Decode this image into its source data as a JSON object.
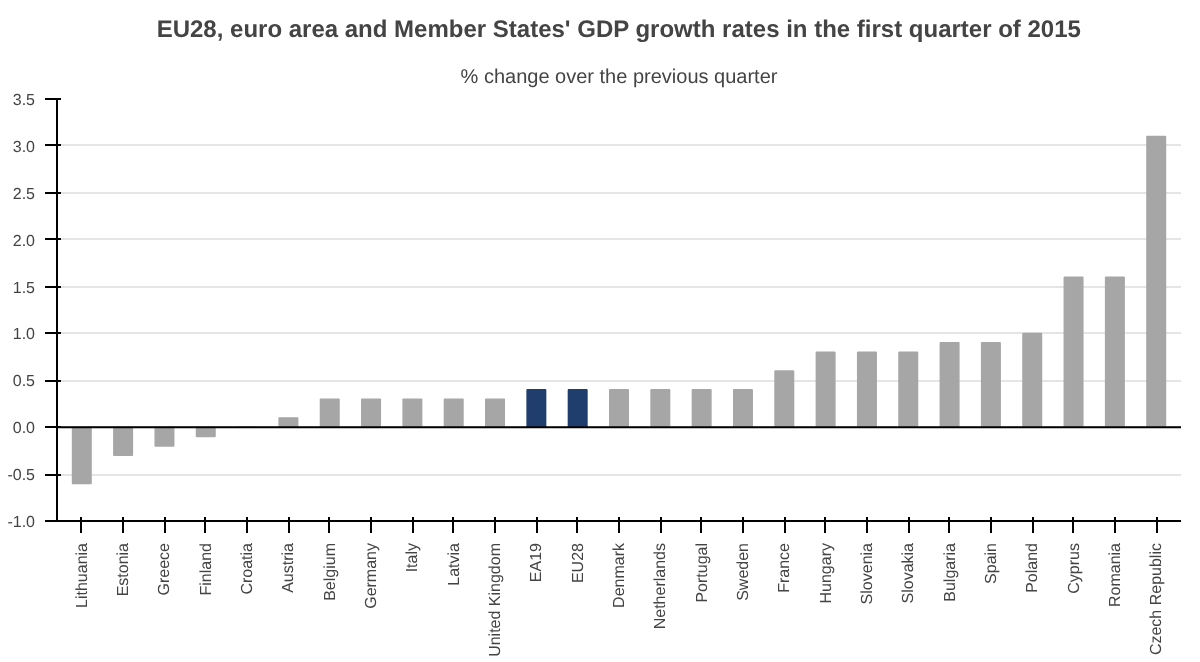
{
  "chart_data": {
    "type": "bar",
    "title": "EU28, euro area and Member States' GDP growth rates in the first quarter of 2015",
    "subtitle": "% change over the previous quarter",
    "categories": [
      "Lithuania",
      "Estonia",
      "Greece",
      "Finland",
      "Croatia",
      "Austria",
      "Belgium",
      "Germany",
      "Italy",
      "Latvia",
      "United Kingdom",
      "EA19",
      "EU28",
      "Denmark",
      "Netherlands",
      "Portugal",
      "Sweden",
      "France",
      "Hungary",
      "Slovenia",
      "Slovakia",
      "Bulgaria",
      "Spain",
      "Poland",
      "Cyprus",
      "Romania",
      "Czech Republic"
    ],
    "values": [
      -0.6,
      -0.3,
      -0.2,
      -0.1,
      0.0,
      0.1,
      0.3,
      0.3,
      0.3,
      0.3,
      0.3,
      0.4,
      0.4,
      0.4,
      0.4,
      0.4,
      0.4,
      0.6,
      0.8,
      0.8,
      0.8,
      0.9,
      0.9,
      1.0,
      1.6,
      1.6,
      3.1
    ],
    "colors": [
      "#a6a6a6",
      "#a6a6a6",
      "#a6a6a6",
      "#a6a6a6",
      "#a6a6a6",
      "#a6a6a6",
      "#a6a6a6",
      "#a6a6a6",
      "#a6a6a6",
      "#a6a6a6",
      "#a6a6a6",
      "#1f3e6e",
      "#1f3e6e",
      "#a6a6a6",
      "#a6a6a6",
      "#a6a6a6",
      "#a6a6a6",
      "#a6a6a6",
      "#a6a6a6",
      "#a6a6a6",
      "#a6a6a6",
      "#a6a6a6",
      "#a6a6a6",
      "#a6a6a6",
      "#a6a6a6",
      "#a6a6a6",
      "#a6a6a6"
    ],
    "ylim": [
      -1.0,
      3.5
    ],
    "yticks": [
      {
        "value": -1.0,
        "label": "-1.0"
      },
      {
        "value": -0.5,
        "label": "-0.5"
      },
      {
        "value": 0.0,
        "label": "0.0"
      },
      {
        "value": 0.5,
        "label": "0.5"
      },
      {
        "value": 1.0,
        "label": "1.0"
      },
      {
        "value": 1.5,
        "label": "1.5"
      },
      {
        "value": 2.0,
        "label": "2.0"
      },
      {
        "value": 2.5,
        "label": "2.5"
      },
      {
        "value": 3.0,
        "label": "3.0"
      },
      {
        "value": 3.5,
        "label": "3.5"
      }
    ],
    "grid": "y"
  }
}
